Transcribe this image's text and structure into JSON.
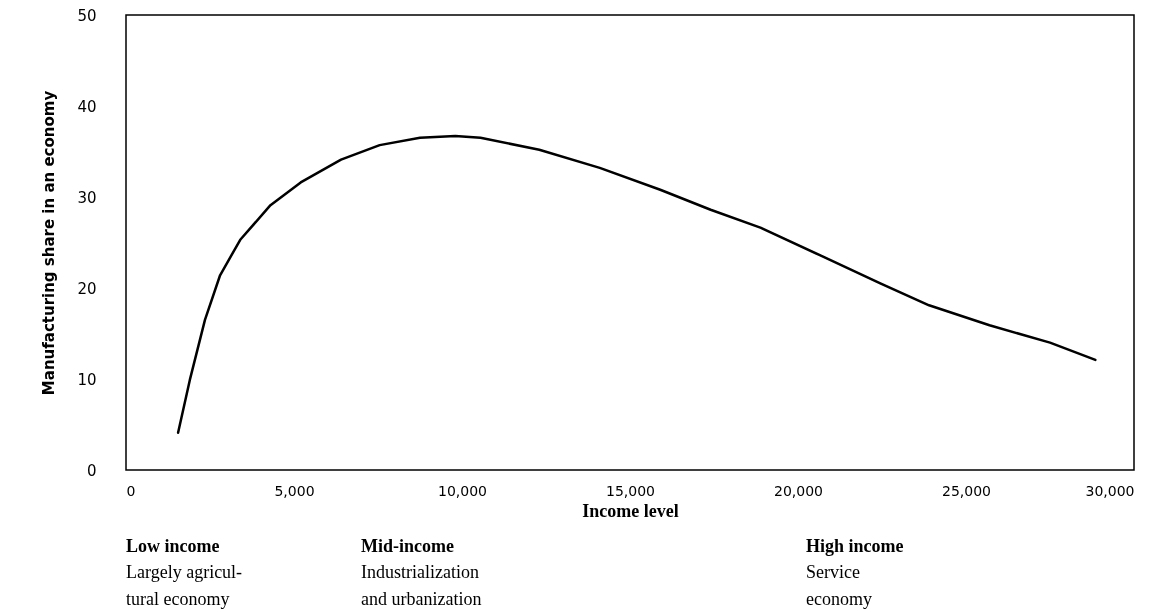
{
  "chart_data": {
    "type": "line",
    "xlabel": "Income level",
    "ylabel": "Manufacturing share in an economy",
    "x": [
      1550,
      1900,
      2350,
      2800,
      3400,
      4300,
      5200,
      6400,
      7550,
      8750,
      9800,
      10550,
      12300,
      14100,
      15900,
      17400,
      18900,
      20650,
      22450,
      23900,
      25700,
      27500,
      28850
    ],
    "series": [
      {
        "color": "#000000",
        "values": [
          4.1,
          9.9,
          16.5,
          21.4,
          25.3,
          29.1,
          31.6,
          34.1,
          35.7,
          36.5,
          36.7,
          36.5,
          35.2,
          33.2,
          30.8,
          28.6,
          26.6,
          23.6,
          20.5,
          18.1,
          15.9,
          14.0,
          12.1
        ]
      }
    ],
    "xlim": [
      0,
      30000
    ],
    "xticks": [
      {
        "value": 0,
        "label": "0"
      },
      {
        "value": 5000,
        "label": "5,000"
      },
      {
        "value": 10000,
        "label": "10,000"
      },
      {
        "value": 15000,
        "label": "15,000"
      },
      {
        "value": 20000,
        "label": "20,000"
      },
      {
        "value": 25000,
        "label": "25,000"
      },
      {
        "value": 30000,
        "label": "30,000"
      }
    ],
    "ylim": [
      0,
      50
    ],
    "yticks": [
      0,
      10,
      20,
      30,
      40,
      50
    ],
    "grid": false,
    "marker": "none",
    "line_style": "solid",
    "annotations": [
      "Low income\nLargely agricul-\ntural economy",
      "Mid-income\nIndustrialization\nand urbanization",
      "High income\nService\neconomy"
    ]
  }
}
